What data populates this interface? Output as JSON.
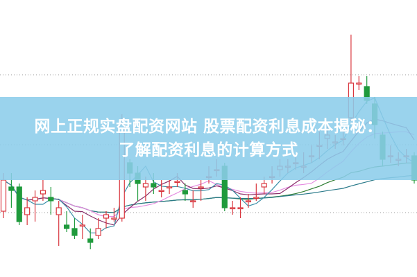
{
  "banner": {
    "title_line1": "网上正规实盘配资网站 股票配资利息成本揭秘：",
    "title_line2": "了解配资利息的计算方式"
  },
  "chart_data": {
    "type": "candlestick",
    "title": "",
    "grid": "horizontal-dotted",
    "colors": {
      "up": "#d9363e",
      "down": "#1f9a3c",
      "ma5": "#3b8fa8",
      "ma10": "#8a2f6a",
      "ma20": "#e58be0",
      "ma60": "#2e7d32",
      "ma120": "#2a7a8a",
      "banner": "#8ccdeb"
    },
    "ylim": [
      0,
      400
    ],
    "candles": [
      [
        95,
        140,
        150,
        85
      ],
      [
        130,
        125,
        150,
        100
      ],
      [
        130,
        80,
        135,
        75
      ],
      [
        90,
        100,
        115,
        75
      ],
      [
        110,
        115,
        125,
        80
      ],
      [
        120,
        125,
        140,
        110
      ],
      [
        115,
        110,
        130,
        90
      ],
      [
        90,
        100,
        110,
        45
      ],
      [
        75,
        70,
        95,
        65
      ],
      [
        70,
        60,
        85,
        55
      ],
      [
        75,
        75,
        90,
        55
      ],
      [
        55,
        50,
        70,
        40
      ],
      [
        60,
        70,
        85,
        55
      ],
      [
        85,
        90,
        95,
        70
      ],
      [
        85,
        85,
        100,
        80
      ],
      [
        85,
        220,
        235,
        80
      ],
      [
        165,
        150,
        170,
        130
      ],
      [
        150,
        135,
        160,
        110
      ],
      [
        130,
        135,
        145,
        110
      ],
      [
        135,
        130,
        150,
        120
      ],
      [
        125,
        125,
        140,
        115
      ],
      [
        130,
        130,
        140,
        120
      ],
      [
        138,
        138,
        150,
        130
      ],
      [
        125,
        120,
        135,
        110
      ],
      [
        110,
        110,
        125,
        100
      ],
      [
        130,
        130,
        140,
        110
      ],
      [
        145,
        145,
        160,
        135
      ],
      [
        155,
        155,
        170,
        145
      ],
      [
        160,
        100,
        165,
        95
      ],
      [
        100,
        100,
        110,
        90
      ],
      [
        100,
        100,
        115,
        85
      ],
      [
        110,
        110,
        120,
        100
      ],
      [
        115,
        115,
        135,
        110
      ],
      [
        130,
        135,
        145,
        120
      ],
      [
        145,
        145,
        160,
        135
      ],
      [
        155,
        160,
        170,
        145
      ],
      [
        160,
        160,
        170,
        150
      ],
      [
        165,
        165,
        175,
        155
      ],
      [
        160,
        160,
        180,
        150
      ],
      [
        175,
        175,
        190,
        165
      ],
      [
        190,
        190,
        210,
        170
      ],
      [
        200,
        205,
        225,
        185
      ],
      [
        195,
        195,
        205,
        185
      ],
      [
        200,
        200,
        210,
        190
      ],
      [
        230,
        280,
        350,
        225
      ],
      [
        280,
        280,
        290,
        270
      ],
      [
        275,
        255,
        290,
        250
      ],
      [
        250,
        220,
        260,
        200
      ],
      [
        205,
        170,
        210,
        160
      ],
      [
        175,
        175,
        190,
        165
      ],
      [
        170,
        170,
        180,
        160
      ],
      [
        175,
        175,
        185,
        165
      ],
      [
        175,
        140,
        180,
        135
      ]
    ]
  }
}
